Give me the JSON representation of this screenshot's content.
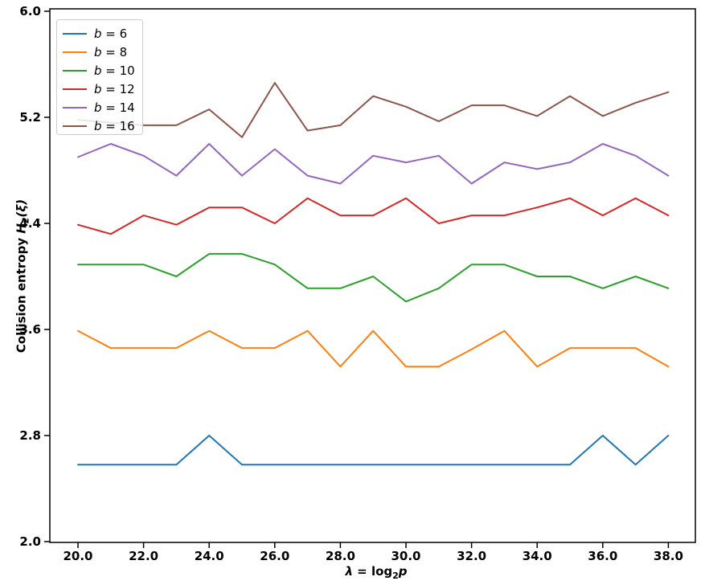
{
  "labels": {
    "ylabel_prefix": "Collision entropy ",
    "ylabel_var": "H",
    "ylabel_sub": "2",
    "ylabel_suffix": "(ξ)",
    "xlabel_var": "λ",
    "xlabel_eq": " = ",
    "xlabel_func": "log",
    "xlabel_sub": "2",
    "xlabel_arg": "p"
  },
  "chart_data": {
    "type": "line",
    "title": "",
    "xlabel": "λ = log₂p",
    "ylabel": "Collision entropy H₂(ξ)",
    "grid": false,
    "legend_position": "upper left",
    "xlim": [
      19.1,
      38.9
    ],
    "ylim": [
      2.0,
      6.0
    ],
    "xticks": [
      "20.0",
      "22.0",
      "24.0",
      "26.0",
      "28.0",
      "30.0",
      "32.0",
      "34.0",
      "36.0",
      "38.0"
    ],
    "yticks": [
      "2.0",
      "2.8",
      "3.6",
      "4.4",
      "5.2",
      "6.0"
    ],
    "x": [
      20,
      21,
      22,
      23,
      24,
      25,
      26,
      27,
      28,
      29,
      30,
      31,
      32,
      33,
      34,
      35,
      36,
      37,
      38
    ],
    "series": [
      {
        "label": "b = 6",
        "b": 6,
        "color": "#1f77b4",
        "values": [
          2.58,
          2.58,
          2.58,
          2.58,
          2.8,
          2.58,
          2.58,
          2.58,
          2.58,
          2.58,
          2.58,
          2.58,
          2.58,
          2.58,
          2.58,
          2.58,
          2.8,
          2.58,
          2.8
        ]
      },
      {
        "label": "b = 8",
        "b": 8,
        "color": "#ff7f0e",
        "values": [
          3.59,
          3.46,
          3.46,
          3.46,
          3.59,
          3.46,
          3.46,
          3.59,
          3.32,
          3.59,
          3.32,
          3.32,
          3.45,
          3.59,
          3.32,
          3.46,
          3.46,
          3.46,
          3.32
        ]
      },
      {
        "label": "b = 10",
        "b": 10,
        "color": "#2ca02c",
        "values": [
          4.09,
          4.09,
          4.09,
          4.0,
          4.17,
          4.17,
          4.09,
          3.91,
          3.91,
          4.0,
          3.81,
          3.91,
          4.09,
          4.09,
          4.0,
          4.0,
          3.91,
          4.0,
          3.91
        ]
      },
      {
        "label": "b = 12",
        "b": 12,
        "color": "#d62728",
        "values": [
          4.39,
          4.32,
          4.46,
          4.39,
          4.52,
          4.52,
          4.4,
          4.59,
          4.46,
          4.46,
          4.59,
          4.4,
          4.46,
          4.46,
          4.52,
          4.59,
          4.46,
          4.59,
          4.46
        ]
      },
      {
        "label": "b = 14",
        "b": 14,
        "color": "#9467bd",
        "values": [
          4.9,
          5.0,
          4.91,
          4.76,
          5.0,
          4.76,
          4.96,
          4.76,
          4.7,
          4.91,
          4.86,
          4.91,
          4.7,
          4.86,
          4.81,
          4.86,
          5.0,
          4.91,
          4.76
        ]
      },
      {
        "label": "b = 16",
        "b": 16,
        "color": "#8c564b",
        "values": [
          5.18,
          5.16,
          5.14,
          5.14,
          5.26,
          5.05,
          5.46,
          5.1,
          5.14,
          5.36,
          5.28,
          5.17,
          5.29,
          5.29,
          5.21,
          5.36,
          5.21,
          5.31,
          5.39
        ]
      }
    ],
    "axis_color": "#000000"
  }
}
